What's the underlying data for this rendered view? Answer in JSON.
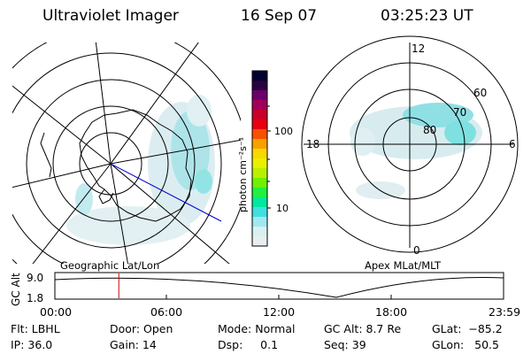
{
  "header": {
    "instrument": "Ultraviolet Imager",
    "date": "16 Sep 07",
    "time": "03:25:23 UT"
  },
  "colorbar": {
    "label": "photon cm⁻²s⁻¹",
    "ticks": [
      "100",
      "10"
    ],
    "colors": [
      "#000030",
      "#2a0040",
      "#6b006b",
      "#a0005a",
      "#c80028",
      "#e80010",
      "#f85000",
      "#f8a000",
      "#f8d800",
      "#e8f000",
      "#b8f000",
      "#70f000",
      "#20f040",
      "#00e8a0",
      "#40e0e0",
      "#a0e8f0",
      "#d8f0f0",
      "#e8eef0"
    ]
  },
  "left_map": {
    "caption": "Geographic Lat/Lon"
  },
  "right_map": {
    "caption": "Apex MLat/MLT",
    "mlt_labels": [
      "12",
      "18",
      "6",
      "0"
    ],
    "lat_labels": [
      "60",
      "70",
      "80"
    ]
  },
  "timeline": {
    "axis_label": "GC Alt",
    "y_ticks": [
      "9.0",
      "1.8"
    ],
    "x_ticks": [
      "00:00",
      "06:00",
      "12:00",
      "18:00",
      "23:59"
    ],
    "current_marker_hour": 3.42
  },
  "info": {
    "flt": "Flt: LBHL",
    "door": "Door: Open",
    "mode": "Mode: Normal",
    "gc_alt": "GC Alt: 8.7 Re",
    "glat": "GLat:  −85.2",
    "ip": "IP: 36.0",
    "gain": "Gain: 14",
    "dsp": "Dsp:     0.1",
    "seq": "Seq: 39",
    "glon": "GLon:   50.5"
  }
}
